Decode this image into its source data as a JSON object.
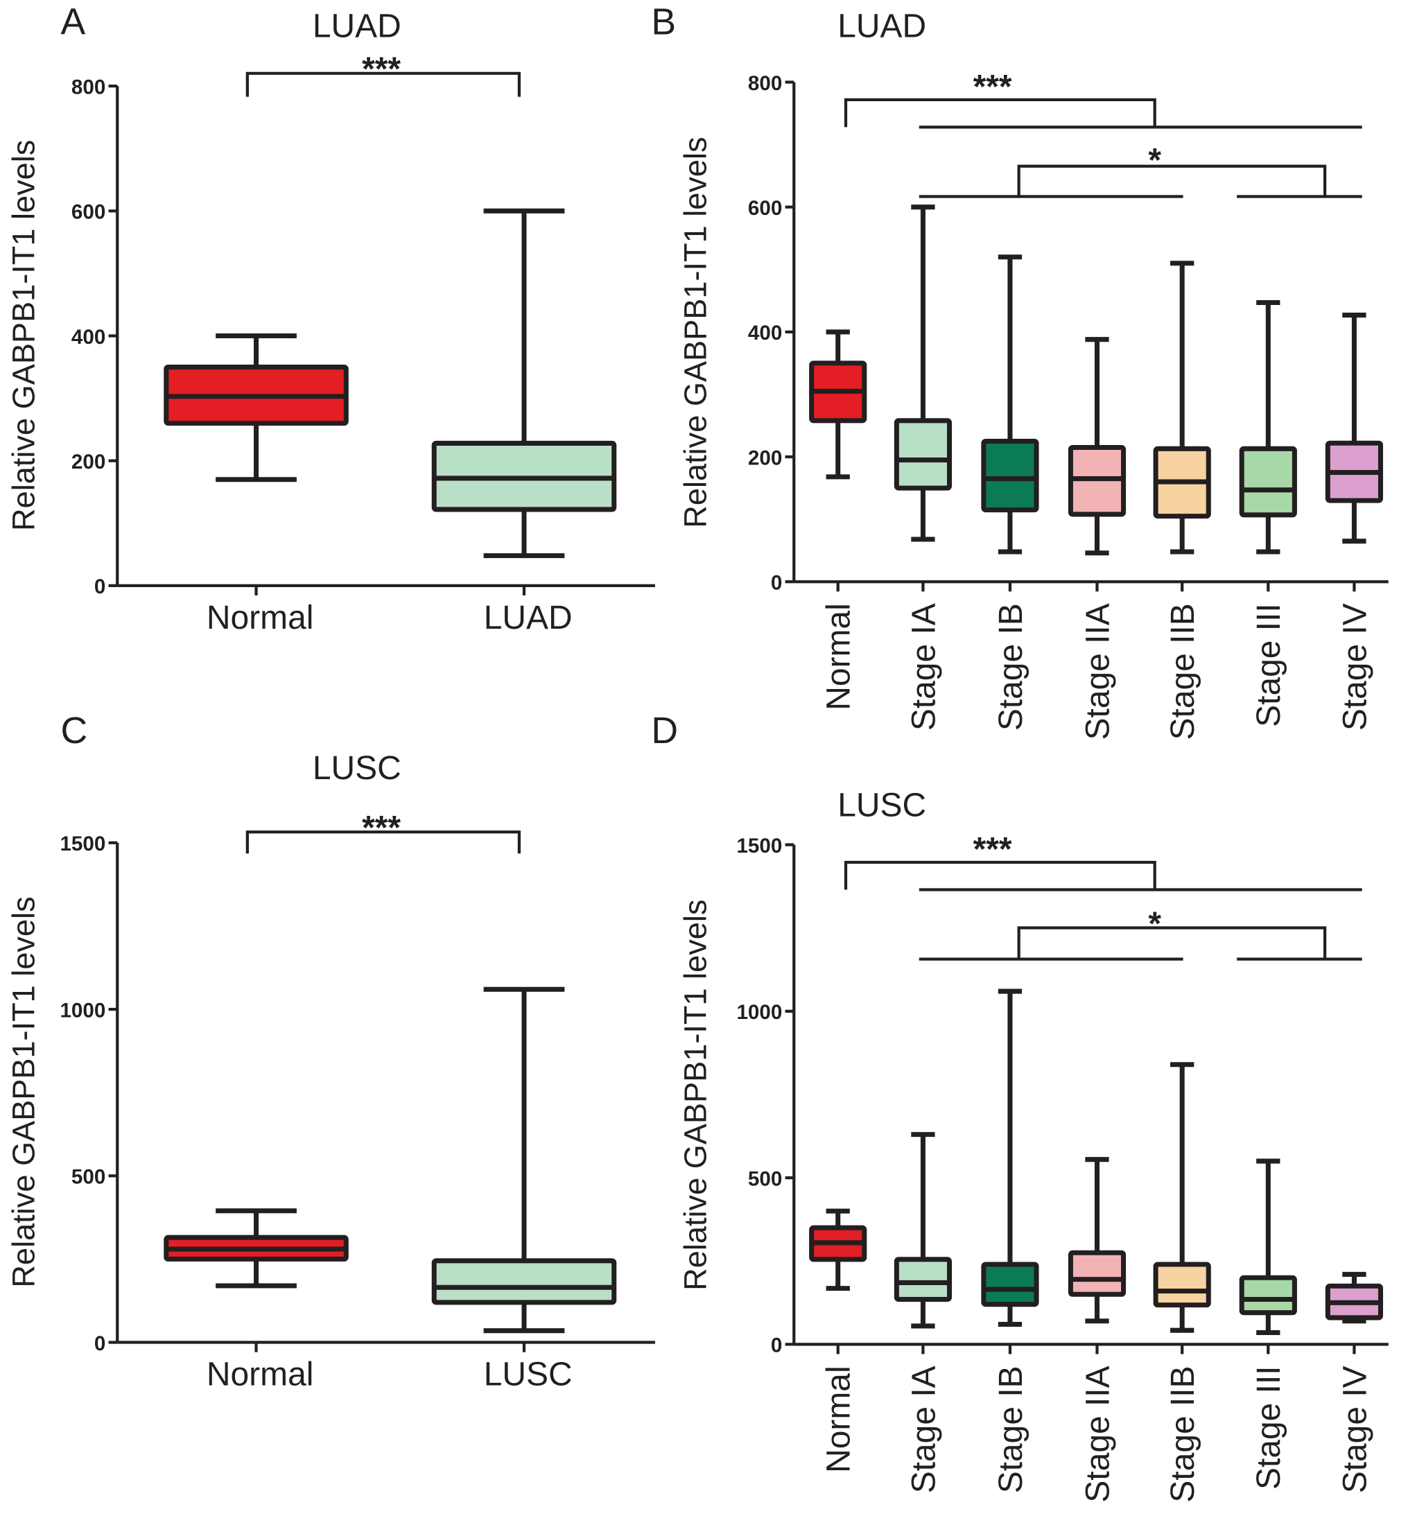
{
  "chart_data": [
    {
      "panel": "A",
      "type": "box",
      "title": "LUAD",
      "ylabel": "Relative GABPB1-IT1 levels",
      "ylim": [
        0,
        800
      ],
      "yticks": [
        0,
        200,
        400,
        600,
        800
      ],
      "categories": [
        "Normal",
        "LUAD"
      ],
      "boxes": [
        {
          "min": 170,
          "q1": 260,
          "median": 303,
          "q3": 350,
          "max": 400,
          "color": "#e31e24"
        },
        {
          "min": 48,
          "q1": 122,
          "median": 172,
          "q3": 228,
          "max": 600,
          "color": "#b9dfc7"
        }
      ],
      "annotations": [
        "***"
      ]
    },
    {
      "panel": "B",
      "type": "box",
      "title": "LUAD",
      "ylabel": "Relative GABPB1-IT1 levels",
      "ylim": [
        0,
        800
      ],
      "yticks": [
        0,
        200,
        400,
        600,
        800
      ],
      "categories": [
        "Normal",
        "Stage IA",
        "Stage IB",
        "Stage IIA",
        "Stage IIB",
        "Stage III",
        "Stage IV"
      ],
      "boxes": [
        {
          "min": 168,
          "q1": 258,
          "median": 305,
          "q3": 350,
          "max": 400,
          "color": "#e31e24"
        },
        {
          "min": 68,
          "q1": 150,
          "median": 195,
          "q3": 258,
          "max": 600,
          "color": "#b9dfc7"
        },
        {
          "min": 48,
          "q1": 115,
          "median": 165,
          "q3": 225,
          "max": 520,
          "color": "#0b7b55"
        },
        {
          "min": 46,
          "q1": 108,
          "median": 165,
          "q3": 215,
          "max": 388,
          "color": "#f2b3b5"
        },
        {
          "min": 48,
          "q1": 105,
          "median": 160,
          "q3": 213,
          "max": 510,
          "color": "#f6d3a0"
        },
        {
          "min": 48,
          "q1": 107,
          "median": 147,
          "q3": 213,
          "max": 447,
          "color": "#a8d8a8"
        },
        {
          "min": 65,
          "q1": 130,
          "median": 175,
          "q3": 222,
          "max": 427,
          "color": "#dca0cf"
        }
      ],
      "annotations": [
        "***",
        "*"
      ]
    },
    {
      "panel": "C",
      "type": "box",
      "title": "LUSC",
      "ylabel": "Relative GABPB1-IT1 levels",
      "ylim": [
        0,
        1500
      ],
      "yticks": [
        0,
        500,
        1000,
        1500
      ],
      "categories": [
        "Normal",
        "LUSC"
      ],
      "boxes": [
        {
          "min": 170,
          "q1": 250,
          "median": 280,
          "q3": 315,
          "max": 395,
          "color": "#e31e24"
        },
        {
          "min": 35,
          "q1": 120,
          "median": 165,
          "q3": 245,
          "max": 1060,
          "color": "#b9dfc7"
        }
      ],
      "annotations": [
        "***"
      ]
    },
    {
      "panel": "D",
      "type": "box",
      "title": "LUSC",
      "ylabel": "Relative GABPB1-IT1 levels",
      "ylim": [
        0,
        1500
      ],
      "yticks": [
        0,
        500,
        1000,
        1500
      ],
      "categories": [
        "Normal",
        "Stage IA",
        "Stage IB",
        "Stage IIA",
        "Stage IIB",
        "Stage III",
        "Stage IV"
      ],
      "boxes": [
        {
          "min": 168,
          "q1": 255,
          "median": 305,
          "q3": 350,
          "max": 400,
          "color": "#e31e24"
        },
        {
          "min": 55,
          "q1": 135,
          "median": 185,
          "q3": 255,
          "max": 630,
          "color": "#b9dfc7"
        },
        {
          "min": 60,
          "q1": 120,
          "median": 165,
          "q3": 240,
          "max": 1060,
          "color": "#0b7b55"
        },
        {
          "min": 70,
          "q1": 150,
          "median": 195,
          "q3": 275,
          "max": 555,
          "color": "#f2b3b5"
        },
        {
          "min": 42,
          "q1": 118,
          "median": 160,
          "q3": 240,
          "max": 840,
          "color": "#f6d3a0"
        },
        {
          "min": 35,
          "q1": 95,
          "median": 135,
          "q3": 200,
          "max": 550,
          "color": "#a8d8a8"
        },
        {
          "min": 70,
          "q1": 80,
          "median": 125,
          "q3": 175,
          "max": 210,
          "color": "#dca0cf"
        }
      ],
      "annotations": [
        "***",
        "*"
      ]
    }
  ]
}
